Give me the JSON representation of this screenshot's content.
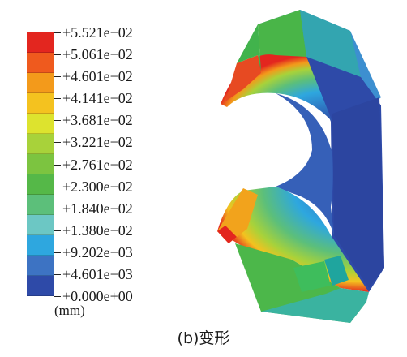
{
  "legend": {
    "labels": [
      "+5.521e−02",
      "+5.061e−02",
      "+4.601e−02",
      "+4.141e−02",
      "+3.681e−02",
      "+3.221e−02",
      "+2.761e−02",
      "+2.300e−02",
      "+1.840e−02",
      "+1.380e−02",
      "+9.202e−03",
      "+4.601e−03",
      "+0.000e+00"
    ],
    "colors": [
      "#e3261f",
      "#ef5a1e",
      "#f39a1b",
      "#f4c21f",
      "#dde32e",
      "#a8d23a",
      "#7cc440",
      "#55b848",
      "#5cbf7a",
      "#6cc7c4",
      "#2ea7df",
      "#3d73c3",
      "#2e4aa8"
    ],
    "unit": "(mm)"
  },
  "caption": "(b)变形"
}
